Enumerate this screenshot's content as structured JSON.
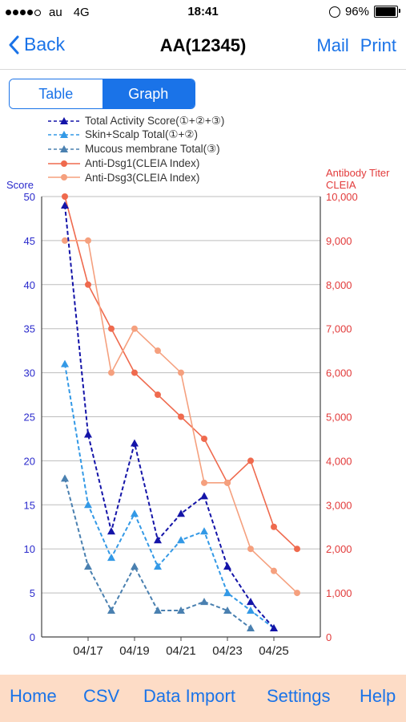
{
  "status": {
    "carrier": "au",
    "network": "4G",
    "time": "18:41",
    "battery": "96%"
  },
  "nav": {
    "back_label": "Back",
    "title": "AA(12345)",
    "mail_label": "Mail",
    "print_label": "Print"
  },
  "segments": {
    "table_label": "Table",
    "graph_label": "Graph",
    "selected": "Graph"
  },
  "tabbar": {
    "home": "Home",
    "csv": "CSV",
    "data_import": "Data Import",
    "settings": "Settings",
    "help": "Help",
    "background": "#fddcc6"
  },
  "colors": {
    "accent": "#1a73e8",
    "total_activity": "#1414a8",
    "skin_scalp": "#3399e6",
    "mucous": "#4a80b0",
    "dsg1": "#ef6a4e",
    "dsg3": "#f5a07e",
    "left_axis": "#2a2acc",
    "right_axis": "#e23b3b"
  },
  "chart_data": {
    "type": "line",
    "left_axis_label": "Score",
    "right_axis_label_1": "Antibody Titer",
    "right_axis_label_2": "CLEIA",
    "left_ticks": [
      "0",
      "5",
      "10",
      "15",
      "20",
      "25",
      "30",
      "35",
      "40",
      "45",
      "50"
    ],
    "right_ticks": [
      "0",
      "1,000",
      "2,000",
      "3,000",
      "4,000",
      "5,000",
      "6,000",
      "7,000",
      "8,000",
      "9,000",
      "10,000"
    ],
    "ylim_left": [
      0,
      50
    ],
    "ylim_right": [
      0,
      10000
    ],
    "x_tick_labels": [
      "04/17",
      "04/19",
      "04/21",
      "04/23",
      "04/25"
    ],
    "x_days": [
      "04/16",
      "04/17",
      "04/18",
      "04/19",
      "04/20",
      "04/21",
      "04/22",
      "04/23",
      "04/24",
      "04/25",
      "04/26"
    ],
    "grid": true,
    "legend_position": "top",
    "series": [
      {
        "name": "Total Activity Score(①+②+③)",
        "axis": "left",
        "marker": "triangle",
        "dash": true,
        "color_key": "total_activity",
        "points": [
          [
            "04/16",
            49
          ],
          [
            "04/17",
            23
          ],
          [
            "04/18",
            12
          ],
          [
            "04/19",
            22
          ],
          [
            "04/20",
            11
          ],
          [
            "04/21",
            14
          ],
          [
            "04/22",
            16
          ],
          [
            "04/23",
            8
          ],
          [
            "04/24",
            4
          ],
          [
            "04/25",
            1
          ]
        ]
      },
      {
        "name": "Skin+Scalp Total(①+②)",
        "axis": "left",
        "marker": "triangle",
        "dash": true,
        "color_key": "skin_scalp",
        "points": [
          [
            "04/16",
            31
          ],
          [
            "04/17",
            15
          ],
          [
            "04/18",
            9
          ],
          [
            "04/19",
            14
          ],
          [
            "04/20",
            8
          ],
          [
            "04/21",
            11
          ],
          [
            "04/22",
            12
          ],
          [
            "04/23",
            5
          ],
          [
            "04/24",
            3
          ],
          [
            "04/25",
            1
          ]
        ]
      },
      {
        "name": "Mucous membrane Total(③)",
        "axis": "left",
        "marker": "triangle",
        "dash": true,
        "color_key": "mucous",
        "points": [
          [
            "04/16",
            18
          ],
          [
            "04/17",
            8
          ],
          [
            "04/18",
            3
          ],
          [
            "04/19",
            8
          ],
          [
            "04/20",
            3
          ],
          [
            "04/21",
            3
          ],
          [
            "04/22",
            4
          ],
          [
            "04/23",
            3
          ],
          [
            "04/24",
            1
          ]
        ]
      },
      {
        "name": "Anti-Dsg1(CLEIA Index)",
        "axis": "right",
        "marker": "circle",
        "dash": false,
        "color_key": "dsg1",
        "points": [
          [
            "04/16",
            10000
          ],
          [
            "04/17",
            8000
          ],
          [
            "04/18",
            7000
          ],
          [
            "04/19",
            6000
          ],
          [
            "04/20",
            5500
          ],
          [
            "04/21",
            5000
          ],
          [
            "04/22",
            4500
          ],
          [
            "04/23",
            3500
          ],
          [
            "04/24",
            4000
          ],
          [
            "04/25",
            2500
          ],
          [
            "04/26",
            2000
          ]
        ]
      },
      {
        "name": "Anti-Dsg3(CLEIA Index)",
        "axis": "right",
        "marker": "circle",
        "dash": false,
        "color_key": "dsg3",
        "points": [
          [
            "04/16",
            9000
          ],
          [
            "04/17",
            9000
          ],
          [
            "04/18",
            6000
          ],
          [
            "04/19",
            7000
          ],
          [
            "04/20",
            6500
          ],
          [
            "04/21",
            6000
          ],
          [
            "04/22",
            3500
          ],
          [
            "04/23",
            3500
          ],
          [
            "04/24",
            2000
          ],
          [
            "04/25",
            1500
          ],
          [
            "04/26",
            1000
          ]
        ]
      }
    ]
  }
}
